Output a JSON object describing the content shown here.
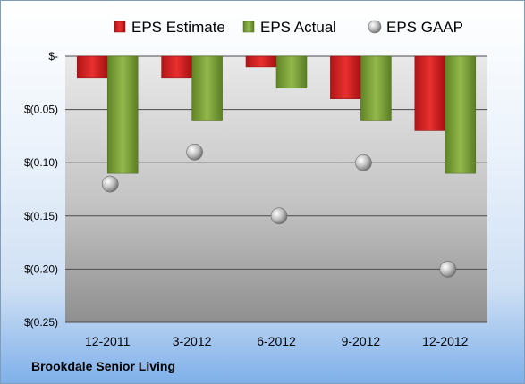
{
  "company_name": "Brookdale Senior Living",
  "chart_data": {
    "type": "bar",
    "categories": [
      "12-2011",
      "3-2012",
      "6-2012",
      "9-2012",
      "12-2012"
    ],
    "series": [
      {
        "name": "EPS Estimate",
        "type": "bar",
        "color": "#d62020",
        "values": [
          -0.02,
          -0.02,
          -0.01,
          -0.04,
          -0.07
        ]
      },
      {
        "name": "EPS Actual",
        "type": "bar",
        "color": "#7ea33b",
        "values": [
          -0.11,
          -0.06,
          -0.03,
          -0.06,
          -0.11
        ]
      },
      {
        "name": "EPS GAAP",
        "type": "scatter",
        "color": "#b8b8b8",
        "values": [
          -0.12,
          -0.09,
          -0.15,
          -0.1,
          -0.2
        ]
      }
    ],
    "yticks": [
      0,
      -0.05,
      -0.1,
      -0.15,
      -0.2,
      -0.25
    ],
    "ytick_labels": [
      "$-",
      "$(0.05)",
      "$(0.10)",
      "$(0.15)",
      "$(0.20)",
      "$(0.25)"
    ],
    "ylim": [
      -0.25,
      0
    ],
    "grid": true,
    "legend_position": "top"
  }
}
